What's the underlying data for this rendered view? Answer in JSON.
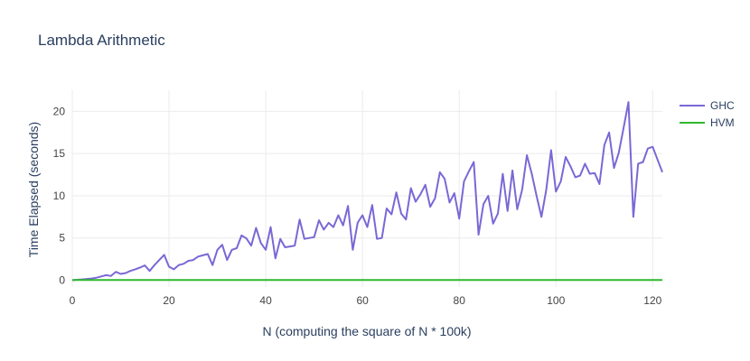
{
  "chart_data": {
    "type": "line",
    "title": "Lambda Arithmetic",
    "xlabel": "N (computing the square of N * 100k)",
    "ylabel": "Time Elapsed (seconds)",
    "xlim": [
      0,
      122
    ],
    "ylim": [
      -0.8,
      22.5
    ],
    "xticks": [
      0,
      20,
      40,
      60,
      80,
      100,
      120
    ],
    "yticks": [
      0,
      5,
      10,
      15,
      20
    ],
    "grid": true,
    "legend_position": "top-right",
    "series": [
      {
        "name": "GHC",
        "color": "#7b68d6",
        "x": [
          0,
          1,
          2,
          3,
          4,
          5,
          6,
          7,
          8,
          9,
          10,
          11,
          12,
          13,
          14,
          15,
          16,
          17,
          18,
          19,
          20,
          21,
          22,
          23,
          24,
          25,
          26,
          27,
          28,
          29,
          30,
          31,
          32,
          33,
          34,
          35,
          36,
          37,
          38,
          39,
          40,
          41,
          42,
          43,
          44,
          45,
          46,
          47,
          48,
          49,
          50,
          51,
          52,
          53,
          54,
          55,
          56,
          57,
          58,
          59,
          60,
          61,
          62,
          63,
          64,
          65,
          66,
          67,
          68,
          69,
          70,
          71,
          72,
          73,
          74,
          75,
          76,
          77,
          78,
          79,
          80,
          81,
          82,
          83,
          84,
          85,
          86,
          87,
          88,
          89,
          90,
          91,
          92,
          93,
          94,
          95,
          96,
          97,
          98,
          99,
          100,
          101,
          102,
          103,
          104,
          105,
          106,
          107,
          108,
          109,
          110,
          111,
          112,
          113,
          114,
          115,
          116,
          117,
          118,
          119,
          120,
          121,
          122
        ],
        "y": [
          0.0,
          0.05,
          0.1,
          0.15,
          0.2,
          0.3,
          0.45,
          0.6,
          0.5,
          1.0,
          0.75,
          0.85,
          1.1,
          1.3,
          1.5,
          1.75,
          1.1,
          1.8,
          2.4,
          3.0,
          1.6,
          1.3,
          1.8,
          1.95,
          2.3,
          2.4,
          2.8,
          2.95,
          3.1,
          1.8,
          3.6,
          4.2,
          2.4,
          3.6,
          3.8,
          5.3,
          4.95,
          4.1,
          6.2,
          4.4,
          3.6,
          6.3,
          2.6,
          4.9,
          3.9,
          4.0,
          4.1,
          7.2,
          4.9,
          5.0,
          5.1,
          7.1,
          6.0,
          6.8,
          6.3,
          7.7,
          6.5,
          8.8,
          3.6,
          6.8,
          7.7,
          6.3,
          8.9,
          4.9,
          5.0,
          8.5,
          7.8,
          10.4,
          7.9,
          7.2,
          10.9,
          9.3,
          10.2,
          11.3,
          8.7,
          9.7,
          12.8,
          12.0,
          9.2,
          10.3,
          7.3,
          11.7,
          12.9,
          14.0,
          5.4,
          9.0,
          10.0,
          6.7,
          7.9,
          12.6,
          8.2,
          13.0,
          8.4,
          10.7,
          14.8,
          12.6,
          10.0,
          7.5,
          10.7,
          15.4,
          10.5,
          11.7,
          14.6,
          13.5,
          12.2,
          12.4,
          13.8,
          12.6,
          12.7,
          11.4,
          16.0,
          17.5,
          13.3,
          15.1,
          18.1,
          21.1,
          7.5,
          13.8,
          14.0,
          15.6,
          15.8,
          14.3,
          12.8
        ]
      },
      {
        "name": "HVM",
        "color": "#2eb82e",
        "x": [
          0,
          122
        ],
        "y": [
          0.02,
          0.02
        ]
      }
    ]
  }
}
